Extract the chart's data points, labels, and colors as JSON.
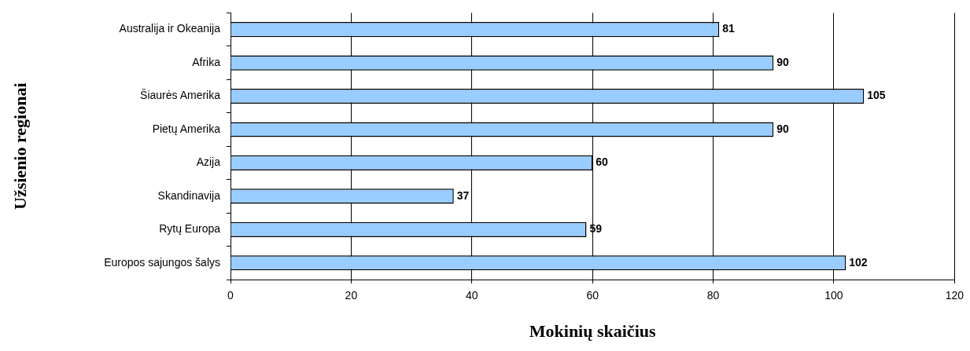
{
  "chart_data": {
    "type": "bar",
    "orientation": "horizontal",
    "xlabel": "Mokinių skaičius",
    "ylabel": "Užsienio regionai",
    "categories": [
      "Australija ir Okeanija",
      "Afrika",
      "Šiaurės Amerika",
      "Pietų Amerika",
      "Azija",
      "Skandinavija",
      "Rytų Europa",
      "Europos sajungos šalys"
    ],
    "values": [
      81,
      90,
      105,
      90,
      60,
      37,
      59,
      102
    ],
    "color": "#99ccff",
    "xlim": [
      0,
      120
    ],
    "xticks": [
      0,
      20,
      40,
      60,
      80,
      100,
      120
    ],
    "grid": "x",
    "data_labels": true,
    "legend": false
  }
}
